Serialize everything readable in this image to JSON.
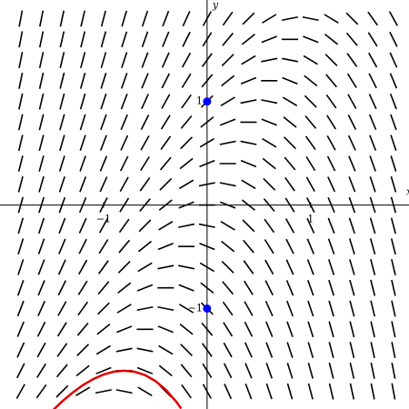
{
  "chart_data": {
    "type": "slope-field",
    "x_label": "x",
    "y_label": "y",
    "xlim": [
      -2,
      1.95
    ],
    "ylim": [
      -1.97,
      1.98
    ],
    "xticks": [
      {
        "value": -1,
        "label": "−1"
      },
      1
    ],
    "yticks": [
      {
        "value": -1,
        "label": "−1"
      },
      1
    ],
    "field_color": "#000000",
    "grid_x": [
      -1.8,
      -1.6,
      -1.4,
      -1.2,
      -1.0,
      -0.8,
      -0.6,
      -0.4,
      -0.2,
      0,
      0.2,
      0.4,
      0.6,
      0.8,
      1.0,
      1.2,
      1.4,
      1.6,
      1.8
    ],
    "grid_y": [
      1.8,
      1.6,
      1.4,
      1.2,
      1.0,
      0.8,
      0.6,
      0.4,
      0.2,
      0,
      -0.2,
      -0.4,
      -0.6,
      -0.8,
      -1.0,
      -1.2,
      -1.4,
      -1.6,
      -1.8
    ],
    "slopes": [
      [
        5.4,
        5.0,
        4.6,
        4.2,
        3.8,
        3.4,
        3.0,
        2.6,
        2.2,
        1.8,
        1.4,
        1.0,
        0.6,
        0.2,
        -0.2,
        -0.6,
        -1.0,
        -1.4,
        -1.8
      ],
      [
        5.2,
        4.8,
        4.4,
        4.0,
        3.6,
        3.2,
        2.8,
        2.4,
        2.0,
        1.6,
        1.2,
        0.8,
        0.4,
        0.0,
        -0.4,
        -0.8,
        -1.2,
        -1.6,
        -2.0
      ],
      [
        5.0,
        4.6,
        4.2,
        3.8,
        3.4,
        3.0,
        2.6,
        2.2,
        1.8,
        1.4,
        1.0,
        0.6,
        0.2,
        -0.2,
        -0.6,
        -1.0,
        -1.4,
        -1.8,
        -2.2
      ],
      [
        4.8,
        4.4,
        4.0,
        3.6,
        3.2,
        2.8,
        2.4,
        2.0,
        1.6,
        1.2,
        0.8,
        0.4,
        0.0,
        -0.4,
        -0.8,
        -1.2,
        -1.6,
        -2.0,
        -2.4
      ],
      [
        4.6,
        4.2,
        3.8,
        3.4,
        3.0,
        2.6,
        2.2,
        1.8,
        1.4,
        1.0,
        0.6,
        0.2,
        -0.2,
        -0.6,
        -1.0,
        -1.4,
        -1.8,
        -2.2,
        -2.6
      ],
      [
        4.4,
        4.0,
        3.6,
        3.2,
        2.8,
        2.4,
        2.0,
        1.6,
        1.2,
        0.8,
        0.4,
        0.0,
        -0.4,
        -0.8,
        -1.2,
        -1.6,
        -2.0,
        -2.4,
        -2.8
      ],
      [
        4.2,
        3.8,
        3.4,
        3.0,
        2.6,
        2.2,
        1.8,
        1.4,
        1.0,
        0.6,
        0.2,
        -0.2,
        -0.6,
        -1.0,
        -1.4,
        -1.8,
        -2.2,
        -2.6,
        -3.0
      ],
      [
        4.0,
        3.6,
        3.2,
        2.8,
        2.4,
        2.0,
        1.6,
        1.2,
        0.8,
        0.4,
        0.0,
        -0.4,
        -0.8,
        -1.2,
        -1.6,
        -2.0,
        -2.4,
        -2.8,
        -3.2
      ],
      [
        3.8,
        3.4,
        3.0,
        2.6,
        2.2,
        1.8,
        1.4,
        1.0,
        0.6,
        0.2,
        -0.2,
        -0.6,
        -1.0,
        -1.4,
        -1.8,
        -2.2,
        -2.6,
        -3.0,
        -3.4
      ],
      [
        3.6,
        3.2,
        2.8,
        2.4,
        2.0,
        1.6,
        1.2,
        0.8,
        0.4,
        0.0,
        -0.4,
        -0.8,
        -1.2,
        -1.6,
        -2.0,
        -2.4,
        -2.8,
        -3.2,
        -3.6
      ],
      [
        3.4,
        3.0,
        2.6,
        2.2,
        1.8,
        1.4,
        1.0,
        0.6,
        0.2,
        -0.2,
        -0.6,
        -1.0,
        -1.4,
        -1.8,
        -2.2,
        -2.6,
        -3.0,
        -3.4,
        -3.8
      ],
      [
        3.2,
        2.8,
        2.4,
        2.0,
        1.6,
        1.2,
        0.8,
        0.4,
        0.0,
        -0.4,
        -0.8,
        -1.2,
        -1.6,
        -2.0,
        -2.4,
        -2.8,
        -3.2,
        -3.6,
        -4.0
      ],
      [
        3.0,
        2.6,
        2.2,
        1.8,
        1.4,
        1.0,
        0.6,
        0.2,
        -0.2,
        -0.6,
        -1.0,
        -1.4,
        -1.8,
        -2.2,
        -2.6,
        -3.0,
        -3.4,
        -3.8,
        -4.2
      ],
      [
        2.8,
        2.4,
        2.0,
        1.6,
        1.2,
        0.8,
        0.4,
        0.0,
        -0.4,
        -0.8,
        -1.2,
        -1.6,
        -2.0,
        -2.4,
        -2.8,
        -3.2,
        -3.6,
        -4.0,
        -4.4
      ],
      [
        2.6,
        2.2,
        1.8,
        1.4,
        1.0,
        0.6,
        0.2,
        -0.2,
        -0.6,
        -1.0,
        -1.4,
        -1.8,
        -2.2,
        -2.6,
        -3.0,
        -3.4,
        -3.8,
        -4.2,
        -4.6
      ],
      [
        2.4,
        2.0,
        1.6,
        1.2,
        0.8,
        0.4,
        0.0,
        -0.4,
        -0.8,
        -1.2,
        -1.6,
        -2.0,
        -2.4,
        -2.8,
        -3.2,
        -3.6,
        -4.0,
        -4.4,
        -4.8
      ],
      [
        2.2,
        1.8,
        1.4,
        1.0,
        0.6,
        0.2,
        -0.2,
        -0.6,
        -1.0,
        -1.4,
        -1.8,
        -2.2,
        -2.6,
        -3.0,
        -3.4,
        -3.8,
        -4.2,
        -4.6,
        -5.0
      ],
      [
        2.0,
        1.6,
        1.2,
        0.8,
        0.4,
        0.0,
        -0.4,
        -0.8,
        -1.2,
        -1.6,
        -2.0,
        -2.4,
        -2.8,
        -3.2,
        -3.6,
        -4.0,
        -4.4,
        -4.8,
        -5.2
      ],
      [
        1.8,
        1.4,
        1.0,
        0.6,
        0.2,
        -0.2,
        -0.6,
        -1.0,
        -1.4,
        -1.8,
        -2.2,
        -2.6,
        -3.0,
        -3.4,
        -3.8,
        -4.2,
        -4.6,
        -5.0,
        -5.4
      ]
    ],
    "curve": {
      "color": "#e00000",
      "x": [
        -1.5,
        -1.4,
        -1.3,
        -1.2,
        -1.1,
        -1.0,
        -0.9,
        -0.8,
        -0.7,
        -0.6,
        -0.5,
        -0.4,
        -0.3,
        -0.25
      ],
      "y": [
        -1.993,
        -1.897,
        -1.813,
        -1.74,
        -1.681,
        -1.637,
        -1.609,
        -1.6,
        -1.61,
        -1.642,
        -1.699,
        -1.783,
        -1.897,
        -1.966
      ]
    },
    "points": {
      "color": "#0000ff",
      "x": [
        0,
        0
      ],
      "y": [
        1,
        -1
      ]
    }
  }
}
